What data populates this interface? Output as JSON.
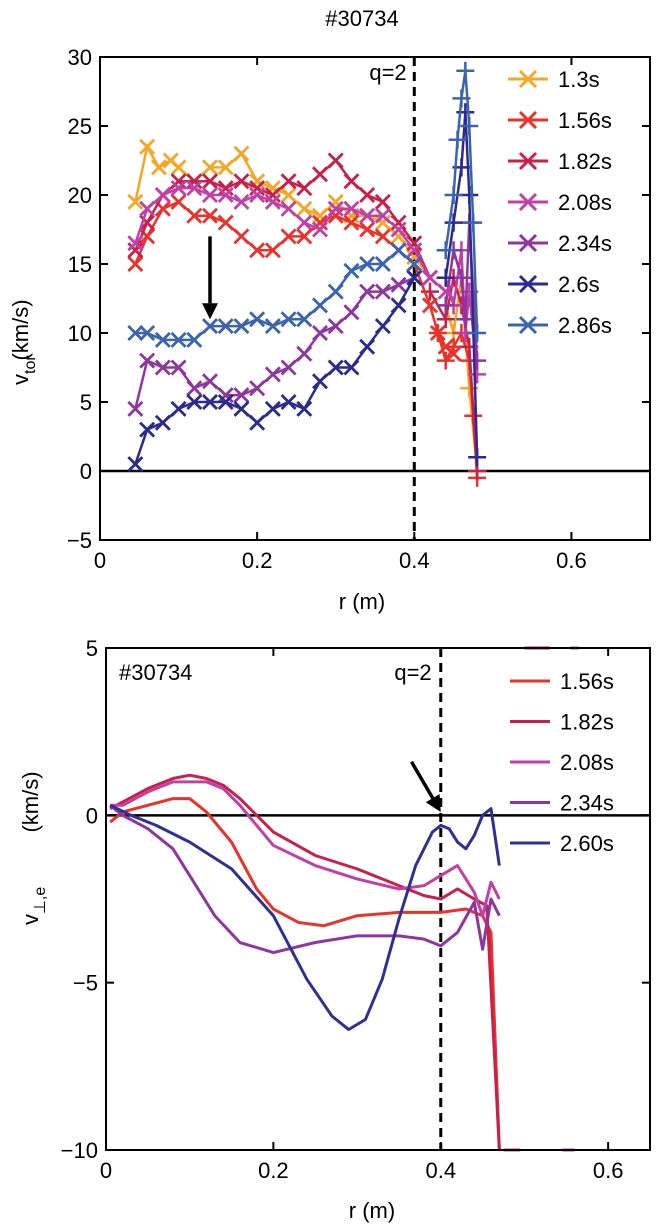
{
  "chart_data": [
    {
      "type": "scatter",
      "title": "#30734",
      "xlabel": "r (m)",
      "ylabel": "v",
      "ylabel_sub": "tor",
      "ylabel_unit": "(km/s)",
      "xlim": [
        0,
        0.7
      ],
      "ylim": [
        -5,
        30
      ],
      "xticks": [
        0,
        0.2,
        0.4,
        0.6
      ],
      "xtick_labels": [
        "0",
        "0.2",
        "0.4",
        "0.6"
      ],
      "yticks": [
        -5,
        0,
        5,
        10,
        15,
        20,
        25,
        30
      ],
      "ytick_labels": [
        "−5",
        "0",
        "5",
        "10",
        "15",
        "20",
        "25",
        "30"
      ],
      "annotation": "q=2",
      "q2_r": 0.4,
      "zero_line": 0,
      "arrow": {
        "from": [
          0.14,
          17
        ],
        "to": [
          0.14,
          11
        ]
      },
      "legend_position": "top-right",
      "series": [
        {
          "name": "1.3s",
          "color": "#f5a623",
          "x": [
            0.045,
            0.06,
            0.075,
            0.09,
            0.1,
            0.12,
            0.14,
            0.16,
            0.18,
            0.2,
            0.22,
            0.24,
            0.26,
            0.28,
            0.3,
            0.32,
            0.34,
            0.36,
            0.38,
            0.4,
            0.42
          ],
          "y": [
            19.5,
            23.5,
            22,
            22.5,
            22,
            21,
            22,
            22,
            23,
            21,
            20.5,
            20,
            19,
            18.5,
            19.5,
            18.5,
            18.5,
            18,
            17,
            15.5,
            14
          ]
        },
        {
          "name": "1.56s",
          "color": "#e8322a",
          "x": [
            0.045,
            0.06,
            0.08,
            0.1,
            0.12,
            0.14,
            0.16,
            0.18,
            0.2,
            0.22,
            0.24,
            0.26,
            0.28,
            0.3,
            0.32,
            0.34,
            0.36,
            0.38,
            0.4,
            0.42,
            0.43,
            0.44,
            0.45
          ],
          "y": [
            15,
            17,
            19,
            19.5,
            18.5,
            18.5,
            18,
            17,
            16,
            16,
            17,
            17,
            18,
            18.5,
            18,
            17.5,
            17,
            16,
            15,
            12,
            10,
            9,
            8.5
          ]
        },
        {
          "name": "1.82s",
          "color": "#c8204a",
          "x": [
            0.045,
            0.06,
            0.08,
            0.1,
            0.12,
            0.14,
            0.16,
            0.18,
            0.2,
            0.22,
            0.24,
            0.26,
            0.28,
            0.3,
            0.32,
            0.34,
            0.36,
            0.38,
            0.4,
            0.42
          ],
          "y": [
            16,
            18,
            20,
            21,
            21,
            21,
            20.5,
            21,
            20.5,
            20,
            21,
            20.5,
            21.5,
            22.5,
            21,
            20,
            19.5,
            18,
            16.5,
            14
          ]
        },
        {
          "name": "2.08s",
          "color": "#c040a8",
          "x": [
            0.045,
            0.06,
            0.08,
            0.1,
            0.12,
            0.14,
            0.16,
            0.18,
            0.2,
            0.22,
            0.24,
            0.26,
            0.28,
            0.3,
            0.32,
            0.34,
            0.36,
            0.38,
            0.4,
            0.42,
            0.44
          ],
          "y": [
            16.5,
            19,
            20,
            20.5,
            20.5,
            20,
            20,
            19.5,
            20,
            19.5,
            19,
            18,
            17.5,
            19,
            19,
            18.5,
            18.5,
            17.5,
            16,
            14,
            13
          ]
        },
        {
          "name": "2.34s",
          "color": "#8e35a0",
          "x": [
            0.045,
            0.06,
            0.08,
            0.1,
            0.12,
            0.14,
            0.16,
            0.18,
            0.2,
            0.22,
            0.24,
            0.26,
            0.28,
            0.3,
            0.32,
            0.34,
            0.36,
            0.38,
            0.4
          ],
          "y": [
            4.5,
            8,
            7.5,
            7.5,
            6,
            6.5,
            5.5,
            5.5,
            6,
            7,
            7.5,
            8.5,
            10,
            10.5,
            11.5,
            13,
            13,
            13.5,
            14
          ]
        },
        {
          "name": "2.6s",
          "color": "#2b2b8f",
          "x": [
            0.045,
            0.06,
            0.08,
            0.1,
            0.12,
            0.14,
            0.16,
            0.18,
            0.2,
            0.22,
            0.24,
            0.26,
            0.28,
            0.3,
            0.32,
            0.34,
            0.36,
            0.38,
            0.4
          ],
          "y": [
            0.5,
            3,
            3.5,
            4.5,
            5,
            5,
            5,
            4.5,
            3.5,
            4.5,
            5,
            4.5,
            6.5,
            7.5,
            7.5,
            9,
            10.5,
            12,
            14
          ]
        },
        {
          "name": "2.86s",
          "color": "#3b64b0",
          "x": [
            0.045,
            0.06,
            0.08,
            0.1,
            0.12,
            0.14,
            0.16,
            0.18,
            0.2,
            0.22,
            0.24,
            0.26,
            0.28,
            0.3,
            0.32,
            0.34,
            0.36,
            0.38,
            0.4
          ],
          "y": [
            10,
            10,
            9.5,
            9.5,
            9.5,
            10.5,
            10.5,
            10.5,
            11,
            10.5,
            11,
            11,
            12,
            13,
            14.5,
            15,
            15,
            16,
            15
          ]
        }
      ],
      "edge_crosses": {
        "marker": "+",
        "series": [
          {
            "color": "#f5a623",
            "x": [
              0.44,
              0.45,
              0.46,
              0.47,
              0.48
            ],
            "y": [
              12,
              10,
              14,
              6,
              0
            ]
          },
          {
            "color": "#e8322a",
            "x": [
              0.43,
              0.44,
              0.45,
              0.46,
              0.47,
              0.475,
              0.48
            ],
            "y": [
              10,
              8,
              9,
              10,
              8,
              4,
              -0.5
            ]
          },
          {
            "color": "#c8204a",
            "x": [
              0.42,
              0.44,
              0.45,
              0.46,
              0.47,
              0.48
            ],
            "y": [
              13,
              11,
              14,
              12,
              9,
              0
            ]
          },
          {
            "color": "#c040a8",
            "x": [
              0.44,
              0.45,
              0.46,
              0.465,
              0.47,
              0.48
            ],
            "y": [
              14,
              12,
              16,
              10,
              13,
              7
            ]
          },
          {
            "color": "#8e35a0",
            "x": [
              0.44,
              0.45,
              0.46,
              0.465,
              0.47,
              0.48
            ],
            "y": [
              12,
              16,
              14,
              11,
              18,
              8
            ]
          },
          {
            "color": "#2b2b8f",
            "x": [
              0.44,
              0.45,
              0.46,
              0.465,
              0.47,
              0.48
            ],
            "y": [
              14,
              18,
              22,
              26,
              20,
              1
            ]
          },
          {
            "color": "#3b64b0",
            "x": [
              0.44,
              0.45,
              0.455,
              0.46,
              0.465,
              0.47,
              0.475,
              0.48
            ],
            "y": [
              16,
              20,
              24,
              27,
              29,
              25,
              18,
              10
            ]
          }
        ]
      }
    },
    {
      "type": "line",
      "title": "#30734",
      "xlabel": "r (m)",
      "ylabel": "v",
      "ylabel_sub": "⊥,e",
      "ylabel_unit": "(km/s)",
      "xlim": [
        0,
        0.65
      ],
      "ylim": [
        -10,
        5
      ],
      "xticks": [
        0,
        0.2,
        0.4,
        0.6
      ],
      "xtick_labels": [
        "0",
        "0.2",
        "0.4",
        "0.6"
      ],
      "yticks": [
        -10,
        -5,
        0,
        5
      ],
      "ytick_labels": [
        "−10",
        "−5",
        "0",
        "5"
      ],
      "annotation": "q=2",
      "q2_r": 0.4,
      "zero_line": 0,
      "arrow": {
        "from": [
          0.365,
          1.6
        ],
        "to": [
          0.4,
          0.1
        ]
      },
      "legend_position": "top-right",
      "series": [
        {
          "name": "1.56s",
          "color": "#e8322a",
          "x": [
            0.005,
            0.02,
            0.05,
            0.08,
            0.1,
            0.12,
            0.15,
            0.18,
            0.2,
            0.23,
            0.26,
            0.3,
            0.35,
            0.4,
            0.43,
            0.45,
            0.46,
            0.47
          ],
          "y": [
            -0.2,
            0.1,
            0.3,
            0.5,
            0.5,
            0.1,
            -0.8,
            -2.2,
            -2.8,
            -3.2,
            -3.3,
            -3.0,
            -2.9,
            -2.9,
            -2.8,
            -3.0,
            -3.5,
            -10
          ]
        },
        {
          "name": "1.82s",
          "color": "#c8204a",
          "x": [
            0.005,
            0.02,
            0.05,
            0.08,
            0.1,
            0.12,
            0.14,
            0.16,
            0.18,
            0.2,
            0.25,
            0.3,
            0.35,
            0.38,
            0.4,
            0.42,
            0.44,
            0.455,
            0.47
          ],
          "y": [
            0.2,
            0.4,
            0.8,
            1.1,
            1.2,
            1.1,
            0.9,
            0.5,
            0.0,
            -0.5,
            -1.2,
            -1.6,
            -2.1,
            -2.4,
            -2.5,
            -2.2,
            -2.5,
            -2.7,
            -10
          ]
        },
        {
          "name": "2.08s",
          "color": "#c040a8",
          "x": [
            0.005,
            0.02,
            0.05,
            0.08,
            0.1,
            0.12,
            0.14,
            0.16,
            0.18,
            0.2,
            0.25,
            0.3,
            0.35,
            0.38,
            0.4,
            0.42,
            0.44,
            0.45,
            0.46,
            0.47
          ],
          "y": [
            0.3,
            0.3,
            0.7,
            1.0,
            1.0,
            1.0,
            0.8,
            0.3,
            -0.3,
            -0.9,
            -1.5,
            -1.9,
            -2.2,
            -2.1,
            -1.8,
            -1.5,
            -2.3,
            -3.0,
            -2.0,
            -2.5
          ]
        },
        {
          "name": "2.34s",
          "color": "#8e35a0",
          "x": [
            0.005,
            0.02,
            0.05,
            0.08,
            0.1,
            0.13,
            0.16,
            0.2,
            0.25,
            0.3,
            0.35,
            0.38,
            0.4,
            0.42,
            0.44,
            0.45,
            0.46,
            0.47
          ],
          "y": [
            0.3,
            0.0,
            -0.4,
            -1.0,
            -1.8,
            -3.0,
            -3.8,
            -4.1,
            -3.8,
            -3.6,
            -3.6,
            -3.7,
            -3.9,
            -3.5,
            -2.6,
            -4.0,
            -2.5,
            -3.0
          ]
        },
        {
          "name": "2.60s",
          "color": "#2f2f94",
          "x": [
            0.005,
            0.03,
            0.06,
            0.1,
            0.15,
            0.2,
            0.24,
            0.27,
            0.29,
            0.31,
            0.33,
            0.35,
            0.37,
            0.39,
            0.4,
            0.41,
            0.42,
            0.43,
            0.44,
            0.45,
            0.46,
            0.47
          ],
          "y": [
            0.3,
            0.0,
            -0.3,
            -0.8,
            -1.6,
            -3.0,
            -4.9,
            -6.0,
            -6.4,
            -6.1,
            -4.9,
            -3.1,
            -1.5,
            -0.5,
            -0.3,
            -0.4,
            -0.8,
            -1.0,
            -0.6,
            0.0,
            0.2,
            -1.5
          ]
        }
      ],
      "edge_fragments": [
        {
          "color": "#c8204a",
          "x": [
            0.5,
            0.53
          ],
          "y": [
            5,
            5
          ]
        },
        {
          "color": "#c040a8",
          "x": [
            0.555,
            0.565
          ],
          "y": [
            5,
            5
          ]
        },
        {
          "color": "#c040a8",
          "x": [
            0.475,
            0.495
          ],
          "y": [
            -10,
            -10
          ]
        },
        {
          "color": "#c040a8",
          "x": [
            0.545,
            0.56
          ],
          "y": [
            -10,
            -10
          ]
        }
      ]
    }
  ]
}
